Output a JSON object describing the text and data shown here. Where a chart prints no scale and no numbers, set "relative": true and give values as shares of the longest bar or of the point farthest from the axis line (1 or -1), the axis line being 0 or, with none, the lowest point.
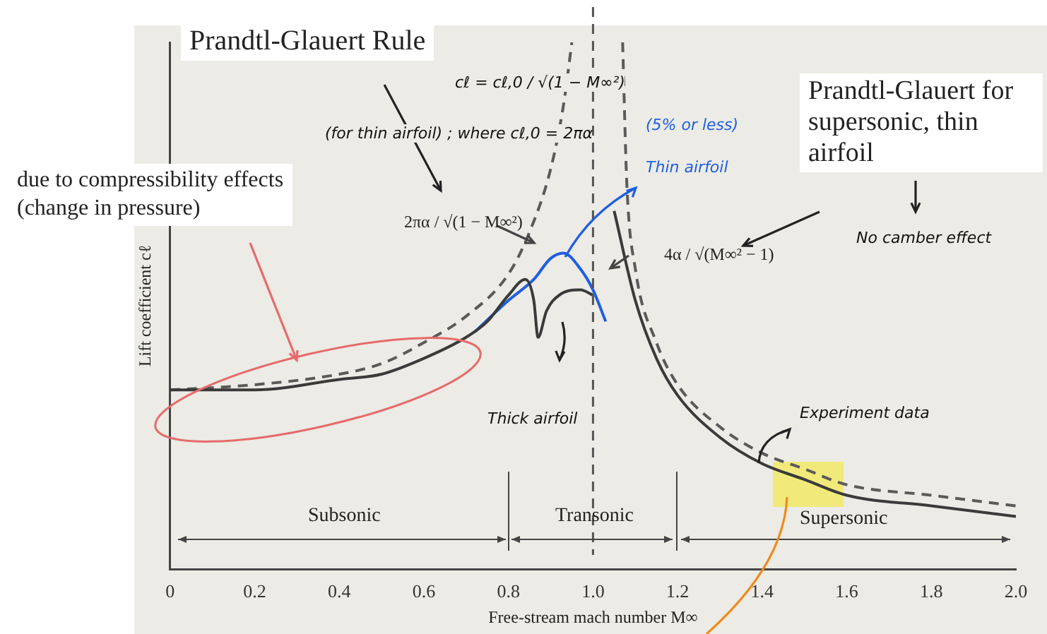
{
  "chart_data": {
    "type": "line",
    "title": "Prandtl-Glauert Rule",
    "xlabel": "Free-stream mach number M∞",
    "ylabel": "Lift coefficient cℓ",
    "relative": true,
    "legend": false,
    "grid": false,
    "xlim": [
      0,
      2
    ],
    "xticks": [
      0,
      0.2,
      0.4,
      0.6,
      0.8,
      {
        "value": 1,
        "label": "1.0"
      },
      1.2,
      1.4,
      1.6,
      1.8,
      {
        "value": 2,
        "label": "2.0"
      }
    ],
    "series": [
      {
        "color": "#3a3a3a",
        "line_style": "solid",
        "x": [
          0,
          0.2,
          0.4,
          0.5,
          0.6,
          0.7,
          0.75,
          0.8,
          0.84,
          0.86,
          0.87,
          0.89,
          0.92,
          0.97,
          1.0
        ],
        "values": [
          0.34,
          0.34,
          0.36,
          0.37,
          0.4,
          0.44,
          0.47,
          0.52,
          0.55,
          0.51,
          0.44,
          0.49,
          0.52,
          0.53,
          0.52
        ]
      },
      {
        "color": "#3a3a3a",
        "line_style": "solid",
        "x": [
          1.05,
          1.1,
          1.15,
          1.2,
          1.3,
          1.4,
          1.5,
          1.6,
          1.8,
          2.0
        ],
        "values": [
          0.68,
          0.51,
          0.4,
          0.33,
          0.25,
          0.2,
          0.17,
          0.14,
          0.12,
          0.1
        ]
      },
      {
        "color": "#5a5a5a",
        "line_style": "dashed",
        "x": [
          0,
          0.2,
          0.4,
          0.5,
          0.6,
          0.7,
          0.8,
          0.85,
          0.9,
          0.93,
          0.95
        ],
        "values": [
          0.34,
          0.35,
          0.37,
          0.39,
          0.43,
          0.48,
          0.56,
          0.64,
          0.76,
          0.88,
          1
        ]
      },
      {
        "color": "#5a5a5a",
        "line_style": "dashed",
        "x": [
          1.07,
          1.08,
          1.1,
          1.15,
          1.2,
          1.3,
          1.4,
          1.5,
          1.6,
          1.8,
          2.0
        ],
        "values": [
          1,
          0.73,
          0.57,
          0.43,
          0.35,
          0.27,
          0.22,
          0.19,
          0.16,
          0.14,
          0.12
        ]
      },
      {
        "color": "#1f5fe0",
        "line_style": "solid",
        "x": [
          0.72,
          0.8,
          0.86,
          0.9,
          0.93,
          0.97,
          1.0,
          1.03
        ],
        "values": [
          0.45,
          0.51,
          0.55,
          0.59,
          0.6,
          0.57,
          0.53,
          0.47
        ]
      }
    ],
    "ref_lines": [
      {
        "axis": "x",
        "value": 1,
        "line_style": "dashed"
      }
    ],
    "annotations": [
      "cℓ = cℓ,0 / √(1 − M∞²)",
      "(for thin airfoil) ; where cℓ,0 = 2πα",
      "due to compressibility effects\n(change in pressure)",
      "2πα / √(1 − M∞²)",
      "(5% or less)",
      "Thin airfoil",
      "Prandtl-Glauert for supersonic, thin airfoil",
      "No camber effect",
      "4α / √(M∞² − 1)",
      "Thick airfoil",
      "Experiment data",
      "Subsonic",
      "Transonic",
      "Supersonic"
    ]
  }
}
